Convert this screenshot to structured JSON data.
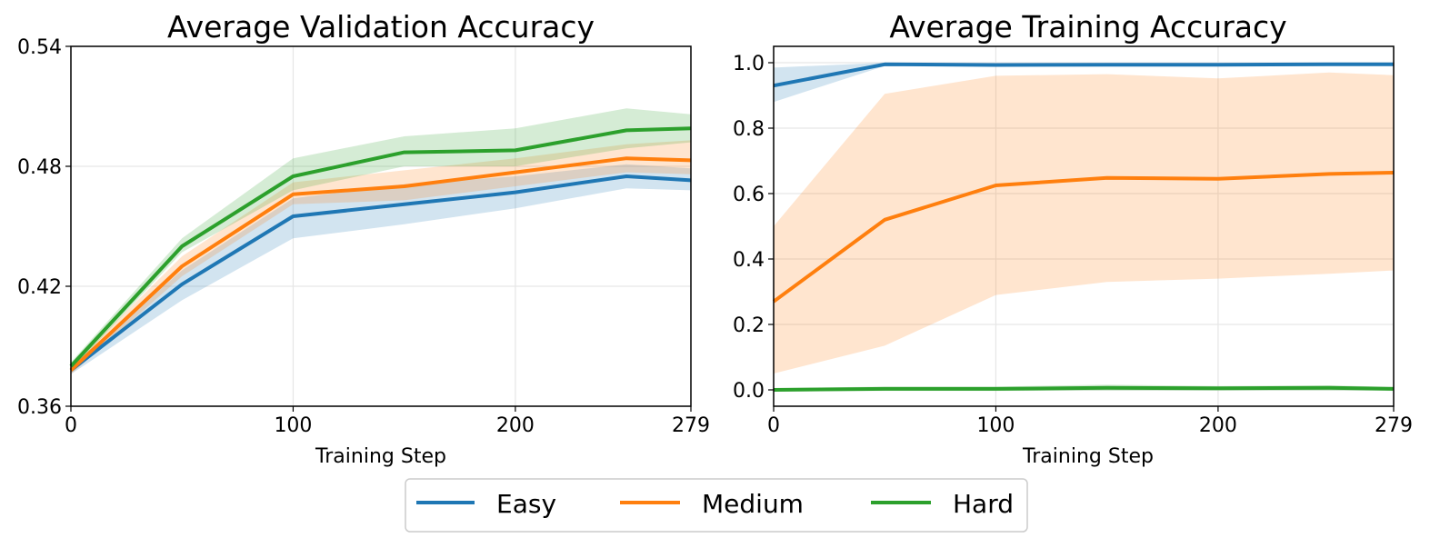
{
  "legend": {
    "items": [
      {
        "name": "Easy",
        "color": "#1f77b4"
      },
      {
        "name": "Medium",
        "color": "#ff7f0e"
      },
      {
        "name": "Hard",
        "color": "#2ca02c"
      }
    ]
  },
  "chart_data": [
    {
      "type": "line",
      "title": "Average Validation Accuracy",
      "xlabel": "Training Step",
      "ylabel": "",
      "x": [
        0,
        50,
        100,
        150,
        200,
        250,
        279
      ],
      "xticks": [
        0,
        100,
        200,
        279
      ],
      "xlim": [
        0,
        279
      ],
      "yticks": [
        "0.36",
        "0.42",
        "0.48",
        "0.54"
      ],
      "ylim": [
        0.36,
        0.54
      ],
      "grid": true,
      "series": [
        {
          "name": "Easy",
          "color": "#1f77b4",
          "values": [
            0.378,
            0.421,
            0.455,
            0.461,
            0.467,
            0.475,
            0.473
          ],
          "lower": [
            0.376,
            0.413,
            0.444,
            0.451,
            0.459,
            0.469,
            0.468
          ],
          "upper": [
            0.38,
            0.428,
            0.464,
            0.471,
            0.475,
            0.481,
            0.479
          ]
        },
        {
          "name": "Medium",
          "color": "#ff7f0e",
          "values": [
            0.378,
            0.43,
            0.466,
            0.47,
            0.477,
            0.484,
            0.483
          ],
          "lower": [
            0.376,
            0.425,
            0.461,
            0.463,
            0.47,
            0.477,
            0.476
          ],
          "upper": [
            0.38,
            0.435,
            0.472,
            0.478,
            0.484,
            0.491,
            0.493
          ]
        },
        {
          "name": "Hard",
          "color": "#2ca02c",
          "values": [
            0.38,
            0.44,
            0.475,
            0.487,
            0.488,
            0.498,
            0.499
          ],
          "lower": [
            0.378,
            0.437,
            0.468,
            0.48,
            0.48,
            0.489,
            0.492
          ],
          "upper": [
            0.382,
            0.444,
            0.484,
            0.495,
            0.499,
            0.509,
            0.506
          ]
        }
      ]
    },
    {
      "type": "line",
      "title": "Average Training Accuracy",
      "xlabel": "Training Step",
      "ylabel": "",
      "x": [
        0,
        50,
        100,
        150,
        200,
        250,
        279
      ],
      "xticks": [
        0,
        100,
        200,
        279
      ],
      "xlim": [
        0,
        279
      ],
      "yticks": [
        "0.0",
        "0.2",
        "0.4",
        "0.6",
        "0.8",
        "1.0"
      ],
      "ylim": [
        -0.05,
        1.05
      ],
      "grid": true,
      "series": [
        {
          "name": "Easy",
          "color": "#1f77b4",
          "values": [
            0.93,
            0.995,
            0.993,
            0.994,
            0.994,
            0.995,
            0.995
          ],
          "lower": [
            0.88,
            0.99,
            0.99,
            0.99,
            0.99,
            0.99,
            0.99
          ],
          "upper": [
            0.985,
            1.0,
            0.997,
            0.998,
            0.998,
            0.999,
            0.999
          ]
        },
        {
          "name": "Medium",
          "color": "#ff7f0e",
          "values": [
            0.27,
            0.52,
            0.625,
            0.648,
            0.645,
            0.66,
            0.664
          ],
          "lower": [
            0.05,
            0.135,
            0.29,
            0.33,
            0.34,
            0.355,
            0.365
          ],
          "upper": [
            0.5,
            0.905,
            0.96,
            0.965,
            0.952,
            0.97,
            0.962
          ]
        },
        {
          "name": "Hard",
          "color": "#2ca02c",
          "values": [
            0.0,
            0.003,
            0.003,
            0.006,
            0.005,
            0.006,
            0.003
          ],
          "lower": [
            -0.005,
            -0.003,
            -0.003,
            -0.002,
            -0.002,
            -0.002,
            -0.003
          ],
          "upper": [
            0.005,
            0.01,
            0.01,
            0.016,
            0.012,
            0.014,
            0.009
          ]
        }
      ]
    }
  ]
}
